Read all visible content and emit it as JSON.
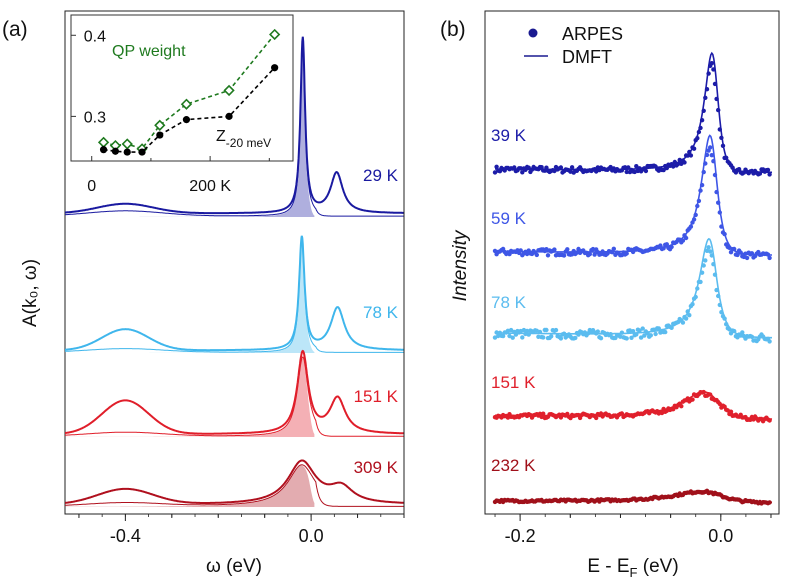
{
  "chart_data": [
    {
      "type": "line",
      "panel_label": "(a)",
      "xlabel": "ω (eV)",
      "ylabel": "A(k₀, ω)",
      "xlim": [
        -0.53,
        0.2
      ],
      "x_ticks": [
        "-0.4",
        "0.0"
      ],
      "x_tick_values": [
        -0.4,
        0.0
      ],
      "series": [
        {
          "name": "29 K",
          "color": "#1a1aa0",
          "qp_pos": -0.018,
          "qp_width": 0.006,
          "qp_amp": 1.0,
          "hub_pos": -0.4,
          "hub_width": 0.06,
          "hub_amp": 0.055,
          "side_pos": 0.055,
          "side_width": 0.016,
          "side_amp": 0.23,
          "baseline": 0.02
        },
        {
          "name": "78 K",
          "color": "#3fb6ec",
          "qp_pos": -0.02,
          "qp_width": 0.007,
          "qp_amp": 0.9,
          "hub_pos": -0.4,
          "hub_width": 0.05,
          "hub_amp": 0.17,
          "side_pos": 0.057,
          "side_width": 0.018,
          "side_amp": 0.34,
          "baseline": 0.02
        },
        {
          "name": "151 K",
          "color": "#e01e2a",
          "qp_pos": -0.018,
          "qp_width": 0.014,
          "qp_amp": 0.6,
          "hub_pos": -0.4,
          "hub_width": 0.05,
          "hub_amp": 0.25,
          "side_pos": 0.057,
          "side_width": 0.02,
          "side_amp": 0.26,
          "baseline": 0.02
        },
        {
          "name": "309 K",
          "color": "#b0101e",
          "qp_pos": -0.02,
          "qp_width": 0.036,
          "qp_amp": 0.36,
          "hub_pos": -0.4,
          "hub_width": 0.06,
          "hub_amp": 0.13,
          "side_pos": 0.065,
          "side_width": 0.03,
          "side_amp": 0.13,
          "baseline": 0.02
        }
      ],
      "inset": {
        "x_ticks": [
          "0",
          "200 K"
        ],
        "x_tick_values": [
          0,
          200
        ],
        "y_ticks": [
          "0.3",
          "0.4"
        ],
        "y_tick_values": [
          0.3,
          0.4
        ],
        "xlim": [
          -35,
          340
        ],
        "ylim": [
          0.245,
          0.425
        ],
        "series": [
          {
            "name": "QP weight",
            "color": "#1f7a1f",
            "marker": "diamond-open",
            "x": [
              20,
              40,
              60,
              85,
              115,
              160,
              232,
              309
            ],
            "y": [
              0.268,
              0.264,
              0.266,
              0.26,
              0.289,
              0.315,
              0.332,
              0.401
            ]
          },
          {
            "name": "Z-20 meV",
            "color": "#000000",
            "marker": "circle-filled",
            "x": [
              20,
              40,
              60,
              85,
              115,
              160,
              232,
              309
            ],
            "y": [
              0.259,
              0.257,
              0.256,
              0.256,
              0.277,
              0.296,
              0.3,
              0.36
            ]
          }
        ],
        "labels": {
          "qp": "QP weight",
          "z_main": "Z",
          "z_sub": "-20 meV"
        }
      }
    },
    {
      "type": "scatter",
      "panel_label": "(b)",
      "xlabel": "E - E",
      "xlabel_sub": "F",
      "xlabel_suffix": " (eV)",
      "ylabel": "Intensity",
      "xlim": [
        -0.235,
        0.058
      ],
      "x_ticks": [
        "-0.2",
        "0.0"
      ],
      "x_tick_values": [
        -0.2,
        0.0
      ],
      "legend": {
        "position": "top-center",
        "arpes": "ARPES",
        "dmft": "DMFT"
      },
      "series": [
        {
          "name": "39 K",
          "color": "#1c1ca8",
          "peak_pos": -0.008,
          "peak_width": 0.009,
          "peak_amp": 1.0,
          "tail": 0.03,
          "noise": 0.022
        },
        {
          "name": "59 K",
          "color": "#3e56e6",
          "peak_pos": -0.01,
          "peak_width": 0.01,
          "peak_amp": 0.95,
          "tail": 0.03,
          "noise": 0.022
        },
        {
          "name": "78 K",
          "color": "#5bbcef",
          "peak_pos": -0.011,
          "peak_width": 0.011,
          "peak_amp": 0.8,
          "tail": 0.04,
          "noise": 0.03
        },
        {
          "name": "151 K",
          "color": "#e0202c",
          "peak_pos": -0.012,
          "peak_width": 0.025,
          "peak_amp": 0.38,
          "tail": 0.05,
          "noise": 0.025
        },
        {
          "name": "232 K",
          "color": "#a0101a",
          "peak_pos": -0.01,
          "peak_width": 0.035,
          "peak_amp": 0.25,
          "tail": 0.03,
          "noise": 0.02
        }
      ]
    }
  ]
}
